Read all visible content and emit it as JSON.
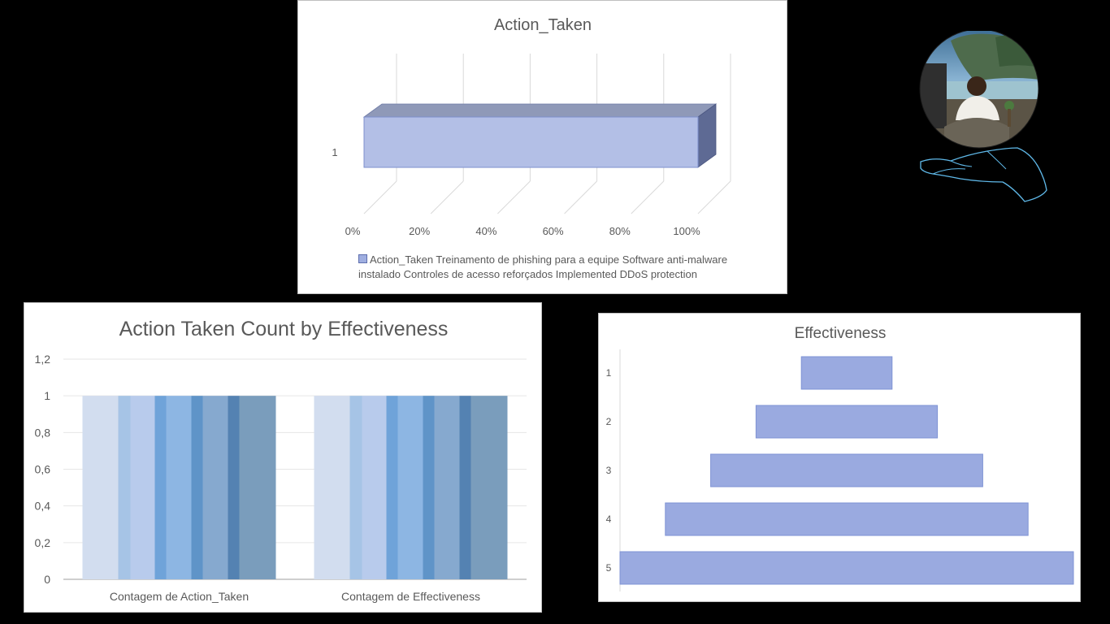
{
  "chart_data": [
    {
      "type": "bar",
      "orientation": "horizontal",
      "style": "3d-100%-stacked",
      "title": "Action_Taken",
      "categories": [
        "1"
      ],
      "x_ticks": [
        "0%",
        "20%",
        "40%",
        "60%",
        "80%",
        "100%"
      ],
      "series": [
        {
          "name": "Action_Taken Treinamento de phishing para a equipe Software anti-malware instalado Controles de acesso reforçados Implemented DDoS protection",
          "values": [
            1
          ]
        }
      ],
      "xlim": [
        0,
        1
      ],
      "grid": true,
      "legend": "bottom",
      "colors": {
        "bar_front": "#b3bfe6",
        "bar_top": "#8f99b8",
        "bar_side": "#5e6a94"
      }
    },
    {
      "type": "bar",
      "title": "Action Taken Count by Effectiveness",
      "categories": [
        "Contagem de Action_Taken",
        "Contagem de Effectiveness"
      ],
      "y_ticks": [
        "0",
        "0,2",
        "0,4",
        "0,6",
        "0,8",
        "1",
        "1,2"
      ],
      "ylim": [
        0,
        1.2
      ],
      "series": [
        {
          "values": [
            1,
            1
          ],
          "color": "#d2ddef"
        },
        {
          "values": [
            1,
            1
          ],
          "color": "#a6c4e6"
        },
        {
          "values": [
            1,
            1
          ],
          "color": "#b8cbec"
        },
        {
          "values": [
            1,
            1
          ],
          "color": "#6fa3d9"
        },
        {
          "values": [
            1,
            1
          ],
          "color": "#8db6e3"
        },
        {
          "values": [
            1,
            1
          ],
          "color": "#5f94c8"
        },
        {
          "values": [
            1,
            1
          ],
          "color": "#86a9cf"
        },
        {
          "values": [
            1,
            1
          ],
          "color": "#5482b2"
        },
        {
          "values": [
            1,
            1
          ],
          "color": "#7a9dbc"
        }
      ],
      "grid": true,
      "legend": "none"
    },
    {
      "type": "bar",
      "orientation": "horizontal",
      "style": "funnel",
      "title": "Effectiveness",
      "categories": [
        "1",
        "2",
        "3",
        "4",
        "5"
      ],
      "values": [
        1,
        2,
        3,
        4,
        5
      ],
      "colors": {
        "bar": "#9aaae0",
        "border": "#7f93d4"
      }
    }
  ]
}
